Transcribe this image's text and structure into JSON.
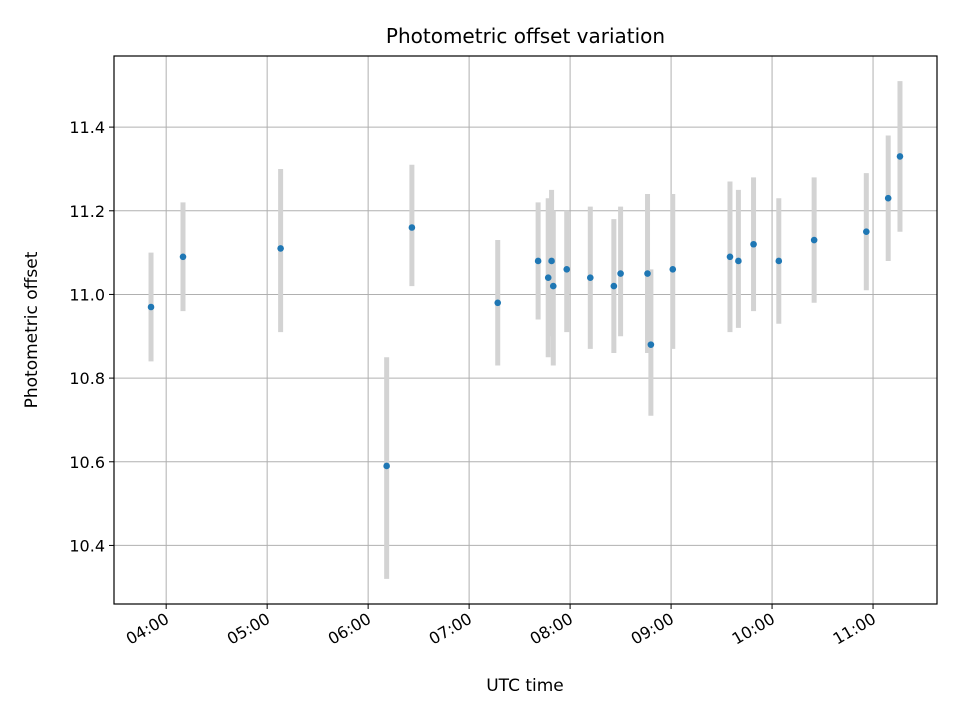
{
  "chart_data": {
    "type": "scatter",
    "title": "Photometric offset variation",
    "xlabel": "UTC time",
    "ylabel": "Photometric offset",
    "x_ticks": [
      "04:00",
      "05:00",
      "06:00",
      "07:00",
      "08:00",
      "09:00",
      "10:00",
      "11:00"
    ],
    "y_ticks": [
      "10.4",
      "10.6",
      "10.8",
      "11.0",
      "11.2",
      "11.4"
    ],
    "xlim": [
      "03:29",
      "11:38"
    ],
    "ylim": [
      10.26,
      11.57
    ],
    "grid": true,
    "error_bar_color": "#d3d3d3",
    "point_color": "#1f77b4",
    "points": [
      {
        "time": "03:51",
        "y": 10.97,
        "lo": 10.84,
        "hi": 11.1
      },
      {
        "time": "04:10",
        "y": 11.09,
        "lo": 10.96,
        "hi": 11.22
      },
      {
        "time": "05:08",
        "y": 11.11,
        "lo": 10.91,
        "hi": 11.3
      },
      {
        "time": "06:11",
        "y": 10.59,
        "lo": 10.32,
        "hi": 10.85
      },
      {
        "time": "06:26",
        "y": 11.16,
        "lo": 11.02,
        "hi": 11.31
      },
      {
        "time": "07:17",
        "y": 10.98,
        "lo": 10.83,
        "hi": 11.13
      },
      {
        "time": "07:41",
        "y": 11.08,
        "lo": 10.94,
        "hi": 11.22
      },
      {
        "time": "07:47",
        "y": 11.04,
        "lo": 10.85,
        "hi": 11.23
      },
      {
        "time": "07:49",
        "y": 11.08,
        "lo": 10.9,
        "hi": 11.25
      },
      {
        "time": "07:50",
        "y": 11.02,
        "lo": 10.83,
        "hi": 11.2
      },
      {
        "time": "07:58",
        "y": 11.06,
        "lo": 10.91,
        "hi": 11.2
      },
      {
        "time": "08:12",
        "y": 11.04,
        "lo": 10.87,
        "hi": 11.21
      },
      {
        "time": "08:26",
        "y": 11.02,
        "lo": 10.86,
        "hi": 11.18
      },
      {
        "time": "08:30",
        "y": 11.05,
        "lo": 10.9,
        "hi": 11.21
      },
      {
        "time": "08:46",
        "y": 11.05,
        "lo": 10.86,
        "hi": 11.24
      },
      {
        "time": "08:48",
        "y": 10.88,
        "lo": 10.71,
        "hi": 11.06
      },
      {
        "time": "09:01",
        "y": 11.06,
        "lo": 10.87,
        "hi": 11.24
      },
      {
        "time": "09:35",
        "y": 11.09,
        "lo": 10.91,
        "hi": 11.27
      },
      {
        "time": "09:40",
        "y": 11.08,
        "lo": 10.92,
        "hi": 11.25
      },
      {
        "time": "09:49",
        "y": 11.12,
        "lo": 10.96,
        "hi": 11.28
      },
      {
        "time": "10:04",
        "y": 11.08,
        "lo": 10.93,
        "hi": 11.23
      },
      {
        "time": "10:25",
        "y": 11.13,
        "lo": 10.98,
        "hi": 11.28
      },
      {
        "time": "10:56",
        "y": 11.15,
        "lo": 11.01,
        "hi": 11.29
      },
      {
        "time": "11:09",
        "y": 11.23,
        "lo": 11.08,
        "hi": 11.38
      },
      {
        "time": "11:16",
        "y": 11.33,
        "lo": 11.15,
        "hi": 11.51
      }
    ]
  }
}
